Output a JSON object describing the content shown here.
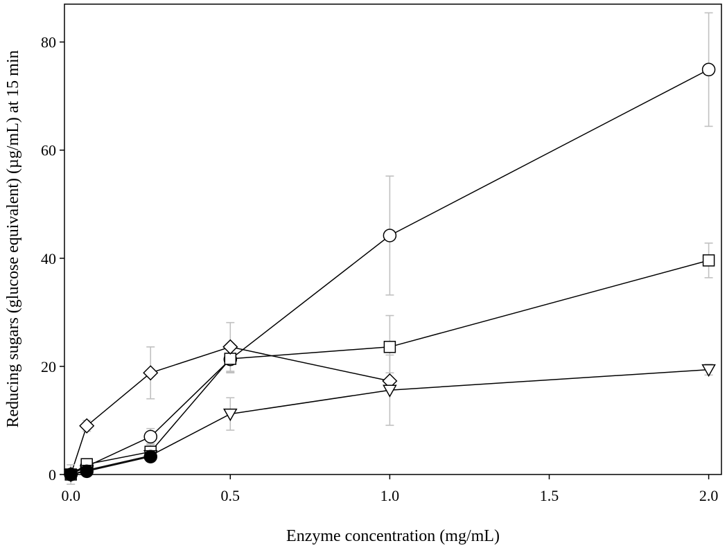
{
  "chart_data": {
    "type": "line",
    "title": "",
    "xlabel": "Enzyme concentration (mg/mL)",
    "ylabel": "Reducing sugars (glucose equivalent) (µg/mL) at 15 min",
    "xlim": [
      -0.02,
      2.04
    ],
    "ylim": [
      0,
      87
    ],
    "xticks": [
      0.0,
      0.5,
      1.0,
      1.5,
      2.0
    ],
    "xtick_labels": [
      "0.0",
      "0.5",
      "1.0",
      "1.5",
      "2.0"
    ],
    "yticks": [
      0,
      20,
      40,
      60,
      80
    ],
    "ytick_labels": [
      "0",
      "20",
      "40",
      "60",
      "80"
    ],
    "grid": false,
    "legend": "none",
    "colors": {
      "line": "#000000",
      "errorbar": "#c0c0c0",
      "fill_open": "#ffffff",
      "fill_filled": "#000000"
    },
    "series": [
      {
        "marker": "circle-open",
        "points": [
          {
            "x": 0.0,
            "y": 0.0,
            "err": 0.3
          },
          {
            "x": 0.05,
            "y": 1.5,
            "err": 0.8
          },
          {
            "x": 0.25,
            "y": 7.0,
            "err": 1.5
          },
          {
            "x": 0.5,
            "y": 21.3,
            "err": 2.5
          },
          {
            "x": 1.0,
            "y": 44.2,
            "err": 11.0
          },
          {
            "x": 2.0,
            "y": 74.9,
            "err": 10.5
          }
        ]
      },
      {
        "marker": "square-open",
        "points": [
          {
            "x": 0.0,
            "y": 0.0,
            "err": 0.3
          },
          {
            "x": 0.05,
            "y": 1.9,
            "err": 0.8
          },
          {
            "x": 0.25,
            "y": 4.2,
            "err": 1.5
          },
          {
            "x": 0.5,
            "y": 21.4,
            "err": 2.5
          },
          {
            "x": 1.0,
            "y": 23.6,
            "err": 5.8
          },
          {
            "x": 2.0,
            "y": 39.6,
            "err": 3.2
          }
        ]
      },
      {
        "marker": "diamond-open",
        "points": [
          {
            "x": 0.0,
            "y": 0.0,
            "err": 1.8
          },
          {
            "x": 0.05,
            "y": 9.0,
            "err": 1.0
          },
          {
            "x": 0.25,
            "y": 18.8,
            "err": 4.8
          },
          {
            "x": 0.5,
            "y": 23.6,
            "err": 4.5
          },
          {
            "x": 1.0,
            "y": 17.3,
            "err": 1.5
          }
        ]
      },
      {
        "marker": "triangle-down-open",
        "points": [
          {
            "x": 0.0,
            "y": 0.0,
            "err": 0.3
          },
          {
            "x": 0.05,
            "y": 0.8,
            "err": 0.5
          },
          {
            "x": 0.25,
            "y": 3.5,
            "err": 1.0
          },
          {
            "x": 0.5,
            "y": 11.2,
            "err": 3.0
          },
          {
            "x": 1.0,
            "y": 15.6,
            "err": 6.5
          },
          {
            "x": 2.0,
            "y": 19.4,
            "err": 1.0
          }
        ]
      },
      {
        "marker": "circle-filled",
        "points": [
          {
            "x": 0.0,
            "y": 0.0,
            "err": 0.3
          },
          {
            "x": 0.05,
            "y": 0.6,
            "err": 0.4
          },
          {
            "x": 0.25,
            "y": 3.3,
            "err": 0.8
          }
        ]
      }
    ]
  }
}
